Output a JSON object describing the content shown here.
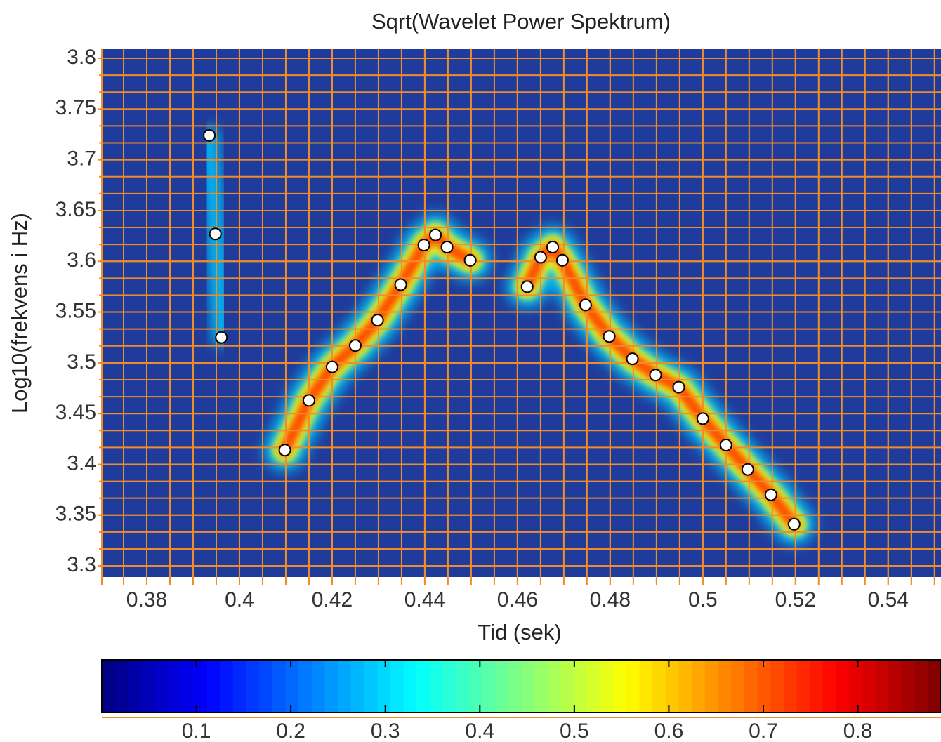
{
  "chart_data": {
    "type": "scatter",
    "title": "Sqrt(Wavelet Power Spektrum)",
    "x_label": "Tid (sek)",
    "y_label": "Log10(frekvens i Hz)",
    "xlim": [
      0.3703,
      0.5514
    ],
    "ylim": [
      3.289,
      3.809
    ],
    "xticks": [
      0.38,
      0.4,
      0.42,
      0.44,
      0.46,
      0.48,
      0.5,
      0.52,
      0.54
    ],
    "yticks": [
      3.3,
      3.35,
      3.4,
      3.45,
      3.5,
      3.55,
      3.6,
      3.65,
      3.7,
      3.75,
      3.8
    ],
    "grid": true,
    "grid_color": "#f28c28",
    "marker_color": "#ffffff",
    "colormap": "jet",
    "clim": [
      0,
      0.888
    ],
    "cticks": [
      0.1,
      0.2,
      0.3,
      0.4,
      0.5,
      0.6,
      0.7,
      0.8
    ],
    "series": [
      {
        "x": [
          0.3935,
          0.3948,
          0.3961
        ],
        "y": [
          3.724,
          3.627,
          3.525
        ]
      },
      {
        "x": [
          0.4098,
          0.415,
          0.42,
          0.425,
          0.4298,
          0.4348,
          0.4398,
          0.4423,
          0.4448,
          0.4498
        ],
        "y": [
          3.414,
          3.463,
          3.496,
          3.517,
          3.542,
          3.577,
          3.616,
          3.626,
          3.614,
          3.601
        ]
      },
      {
        "x": [
          0.4621,
          0.465,
          0.4676,
          0.4697,
          0.4747,
          0.4798,
          0.4848,
          0.4898,
          0.4948,
          0.5,
          0.505,
          0.5097,
          0.5147,
          0.5197
        ],
        "y": [
          3.575,
          3.604,
          3.614,
          3.601,
          3.557,
          3.526,
          3.504,
          3.488,
          3.476,
          3.445,
          3.419,
          3.395,
          3.37,
          3.341
        ]
      }
    ]
  }
}
